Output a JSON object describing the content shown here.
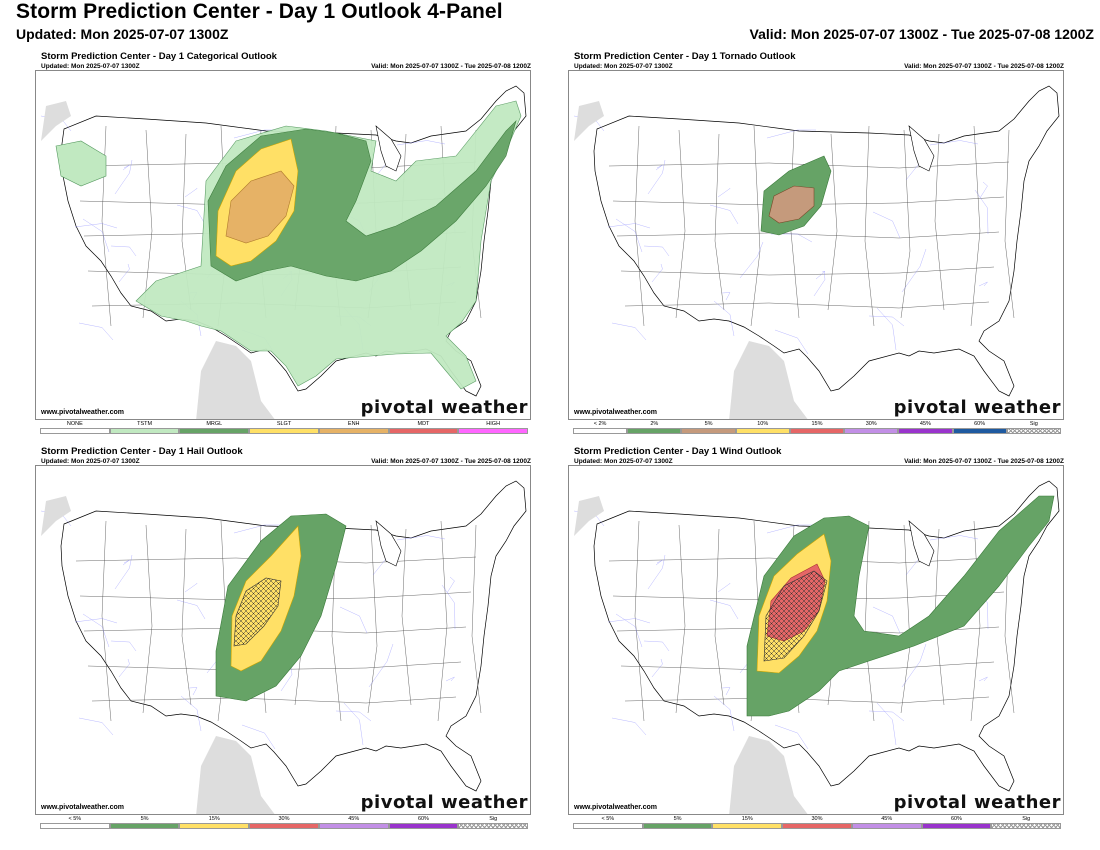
{
  "header": {
    "title": "Storm Prediction Center - Day 1 Outlook 4-Panel",
    "updated": "Updated: Mon 2025-07-07 1300Z",
    "valid": "Valid: Mon 2025-07-07 1300Z - Tue 2025-07-08 1200Z"
  },
  "colors": {
    "none": "#ffffff",
    "tstm": "#c1e9c1",
    "mrgl": "#66a366",
    "slgt": "#ffe066",
    "enh": "#e6b266",
    "mdt": "#e66666",
    "high": "#ff66ff",
    "land": "#ffffff",
    "ocean": "#ffffff",
    "foreign": "#dddddd",
    "lakes": "#ffffff"
  },
  "panels": [
    {
      "title": "Storm Prediction Center - Day 1 Categorical Outlook",
      "updated": "Updated: Mon 2025-07-07 1300Z",
      "valid": "Valid: Mon 2025-07-07 1300Z - Tue 2025-07-08 1200Z",
      "site": "www.pivotalweather.com",
      "brand": "pivotal weather",
      "legend": [
        {
          "label": "NONE",
          "color": "#ffffff"
        },
        {
          "label": "TSTM",
          "color": "#c1e9c1"
        },
        {
          "label": "MRGL",
          "color": "#66a366"
        },
        {
          "label": "SLGT",
          "color": "#ffe066"
        },
        {
          "label": "ENH",
          "color": "#e6b266"
        },
        {
          "label": "MDT",
          "color": "#e66666"
        },
        {
          "label": "HIGH",
          "color": "#ff66ff"
        }
      ]
    },
    {
      "title": "Storm Prediction Center - Day 1 Tornado Outlook",
      "updated": "Updated: Mon 2025-07-07 1300Z",
      "valid": "Valid: Mon 2025-07-07 1300Z - Tue 2025-07-08 1200Z",
      "site": "www.pivotalweather.com",
      "brand": "pivotal weather",
      "legend": [
        {
          "label": "< 2%",
          "color": "#ffffff"
        },
        {
          "label": "2%",
          "color": "#66a366"
        },
        {
          "label": "5%",
          "color": "#c59a7c"
        },
        {
          "label": "10%",
          "color": "#ffe066"
        },
        {
          "label": "15%",
          "color": "#e66666"
        },
        {
          "label": "30%",
          "color": "#c28fe6"
        },
        {
          "label": "45%",
          "color": "#9933cc"
        },
        {
          "label": "60%",
          "color": "#1e5aa0"
        },
        {
          "label": "Sig",
          "color": "hatch"
        }
      ]
    },
    {
      "title": "Storm Prediction Center - Day 1 Hail Outlook",
      "updated": "Updated: Mon 2025-07-07 1300Z",
      "valid": "Valid: Mon 2025-07-07 1300Z - Tue 2025-07-08 1200Z",
      "site": "www.pivotalweather.com",
      "brand": "pivotal weather",
      "legend": [
        {
          "label": "< 5%",
          "color": "#ffffff"
        },
        {
          "label": "5%",
          "color": "#66a366"
        },
        {
          "label": "15%",
          "color": "#ffe066"
        },
        {
          "label": "30%",
          "color": "#e66666"
        },
        {
          "label": "45%",
          "color": "#c28fe6"
        },
        {
          "label": "60%",
          "color": "#9933cc"
        },
        {
          "label": "Sig",
          "color": "hatch"
        }
      ]
    },
    {
      "title": "Storm Prediction Center - Day 1 Wind Outlook",
      "updated": "Updated: Mon 2025-07-07 1300Z",
      "valid": "Valid: Mon 2025-07-07 1300Z - Tue 2025-07-08 1200Z",
      "site": "www.pivotalweather.com",
      "brand": "pivotal weather",
      "legend": [
        {
          "label": "< 5%",
          "color": "#ffffff"
        },
        {
          "label": "5%",
          "color": "#66a366"
        },
        {
          "label": "15%",
          "color": "#ffe066"
        },
        {
          "label": "30%",
          "color": "#e66666"
        },
        {
          "label": "45%",
          "color": "#c28fe6"
        },
        {
          "label": "60%",
          "color": "#9933cc"
        },
        {
          "label": "Sig",
          "color": "hatch"
        }
      ]
    }
  ]
}
